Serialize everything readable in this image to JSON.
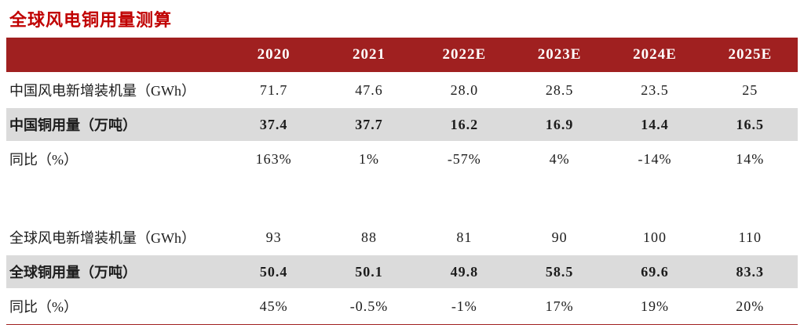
{
  "title": "全球风电铜用量测算",
  "colors": {
    "title_red": "#c00000",
    "header_bg": "#a02020",
    "header_text": "#ffffff",
    "highlight_row_bg": "#dbdbdb",
    "bottom_border": "#a02020"
  },
  "chart_data": {
    "type": "table",
    "title": "全球风电铜用量测算",
    "columns": [
      "",
      "2020",
      "2021",
      "2022E",
      "2023E",
      "2024E",
      "2025E"
    ],
    "rows": [
      {
        "label": "中国风电新增装机量（GWh）",
        "values": [
          "71.7",
          "47.6",
          "28.0",
          "28.5",
          "23.5",
          "25"
        ]
      },
      {
        "label": "中国铜用量（万吨）",
        "values": [
          "37.4",
          "37.7",
          "16.2",
          "16.9",
          "14.4",
          "16.5"
        ]
      },
      {
        "label": "同比（%）",
        "values": [
          "163%",
          "1%",
          "-57%",
          "4%",
          "-14%",
          "14%"
        ]
      },
      {
        "label": "",
        "values": [
          "",
          "",
          "",
          "",
          "",
          ""
        ]
      },
      {
        "label": "全球风电新增装机量（GWh）",
        "values": [
          "93",
          "88",
          "81",
          "90",
          "100",
          "110"
        ]
      },
      {
        "label": "全球铜用量（万吨）",
        "values": [
          "50.4",
          "50.1",
          "49.8",
          "58.5",
          "69.6",
          "83.3"
        ]
      },
      {
        "label": "同比（%）",
        "values": [
          "45%",
          "-0.5%",
          "-1%",
          "17%",
          "19%",
          "20%"
        ]
      }
    ]
  }
}
